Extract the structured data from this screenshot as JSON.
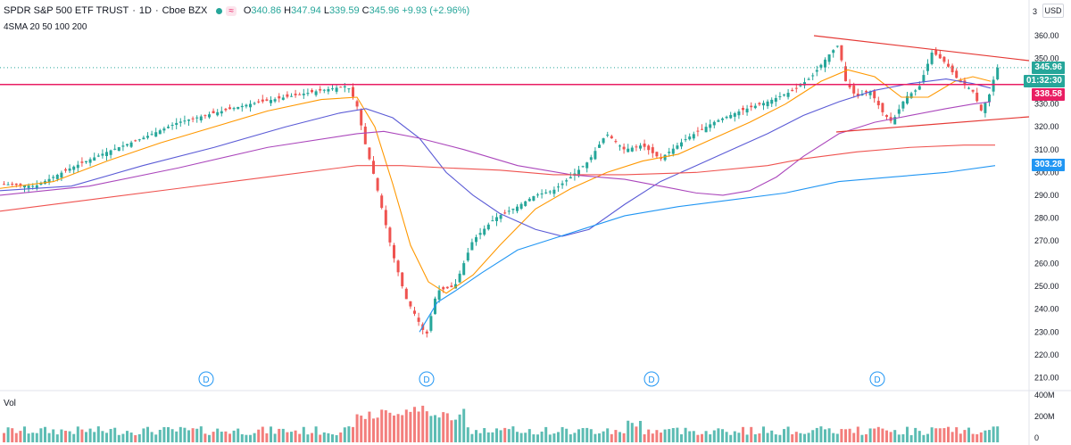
{
  "symbol": {
    "name": "SPDR S&P 500 ETF TRUST",
    "interval": "1D",
    "exchange": "Cboe BZX",
    "separator": "·"
  },
  "approx_badge": "≈",
  "ohlc": {
    "open_label": "O",
    "open": "340.86",
    "high_label": "H",
    "high": "347.94",
    "low_label": "L",
    "low": "339.59",
    "close_label": "C",
    "close": "345.96",
    "change": "+9.93 (+2.96%)"
  },
  "indicator_label": "4SMA 20 50 100 200",
  "volume_label": "Vol",
  "currency": "USD",
  "axis_cut_label": "3",
  "price_tags": {
    "last": "345.96",
    "countdown": "01:32:30",
    "hline": "338.58",
    "sma200": "303.28"
  },
  "dividend_marker": "D",
  "colors": {
    "up": "#26a69a",
    "down": "#ef5350",
    "sma20": "#ff9800",
    "sma50": "#5b5bd6",
    "sma100": "#ab47bc",
    "sma200_orange": "#ef5350",
    "sma200_blue": "#2196f3",
    "hline": "#e91e63",
    "trend": "#e53935"
  },
  "chart_data": {
    "type": "candlestick",
    "price_axis": {
      "ticks": [
        360,
        350,
        330,
        320,
        310,
        300,
        290,
        280,
        270,
        260,
        250,
        240,
        230,
        220,
        210
      ],
      "range": [
        205,
        365
      ]
    },
    "volume_axis": {
      "ticks": [
        "400M",
        "200M",
        "0"
      ]
    },
    "horizontal_line": 338.58,
    "last_price": 345.96,
    "dividend_markers_count": 4
  }
}
